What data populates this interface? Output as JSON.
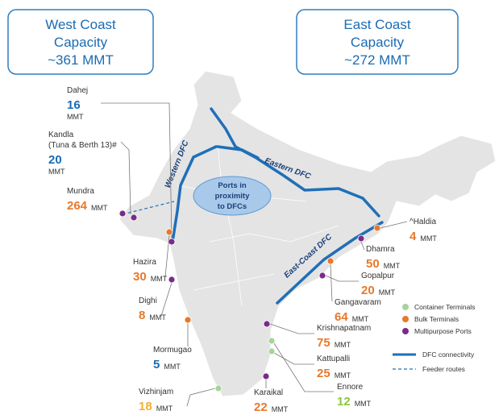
{
  "boxes": [
    {
      "title": "West Coast",
      "subtitle": "Capacity",
      "value": "~361 MMT"
    },
    {
      "title": "East Coast",
      "subtitle": "Capacity",
      "value": "~272 MMT"
    }
  ],
  "center_label": [
    "Ports in",
    "proximity",
    "to DFCs"
  ],
  "corridors": [
    "Western DFC",
    "Eastern DFC",
    "East-Coast DFC"
  ],
  "ports": [
    {
      "name": "Dahej",
      "capacity": 16,
      "unit": "MMT",
      "value_color": "#1a6cb3",
      "dot_color": "#7a2a8a"
    },
    {
      "name": "Kandla",
      "note": "(Tuna & Berth 13)#",
      "capacity": 20,
      "unit": "MMT",
      "value_color": "#1a6cb3",
      "dot_color": "#7a2a8a"
    },
    {
      "name": "Mundra",
      "capacity": 264,
      "unit": "MMT",
      "value_color": "#e8782a",
      "dot_color": "#7a2a8a"
    },
    {
      "name": "Hazira",
      "capacity": 30,
      "unit": "MMT",
      "value_color": "#e8782a",
      "dot_color": "#e8782a"
    },
    {
      "name": "Dighi",
      "capacity": 8,
      "unit": "MMT",
      "value_color": "#e8782a",
      "dot_color": "#7a2a8a"
    },
    {
      "name": "Mormugao",
      "capacity": 5,
      "unit": "MMT",
      "value_color": "#1a6cb3",
      "dot_color": "#e8782a"
    },
    {
      "name": "Vizhinjam",
      "capacity": 18,
      "unit": "MMT",
      "value_color": "#f0b030",
      "dot_color": "#a6d49a"
    },
    {
      "name": "Karaikal",
      "capacity": 22,
      "unit": "MMT",
      "value_color": "#e8782a",
      "dot_color": "#7a2a8a"
    },
    {
      "name": "Ennore",
      "capacity": 12,
      "unit": "MMT",
      "value_color": "#8cc63f",
      "dot_color": "#a6d49a"
    },
    {
      "name": "Kattupalli",
      "capacity": 25,
      "unit": "MMT",
      "value_color": "#e8782a",
      "dot_color": "#a6d49a"
    },
    {
      "name": "Krishnapatnam",
      "capacity": 75,
      "unit": "MMT",
      "value_color": "#e8782a",
      "dot_color": "#7a2a8a"
    },
    {
      "name": "Gangavaram",
      "capacity": 64,
      "unit": "MMT",
      "value_color": "#e8782a",
      "dot_color": "#e8782a"
    },
    {
      "name": "Gopalpur",
      "capacity": 20,
      "unit": "MMT",
      "value_color": "#e8782a",
      "dot_color": "#7a2a8a"
    },
    {
      "name": "Dhamra",
      "capacity": 50,
      "unit": "MMT",
      "value_color": "#e8782a",
      "dot_color": "#7a2a8a"
    },
    {
      "name": "^Haldia",
      "capacity": 4,
      "unit": "MMT",
      "value_color": "#e8782a",
      "dot_color": "#e8782a"
    }
  ],
  "legend": {
    "terminals": [
      {
        "label": "Container Terminals",
        "color": "#a6d49a"
      },
      {
        "label": "Bulk Terminals",
        "color": "#e8782a"
      },
      {
        "label": "Multipurpose Ports",
        "color": "#7a2a8a"
      }
    ],
    "lines": [
      {
        "label": "DFC connectivity",
        "color": "#1f6fb8",
        "style": "solid"
      },
      {
        "label": "Feeder routes",
        "color": "#1f6fb8",
        "style": "dashed"
      }
    ]
  }
}
